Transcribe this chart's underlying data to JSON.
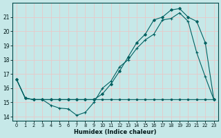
{
  "xlabel": "Humidex (Indice chaleur)",
  "bg_color": "#c6e8e8",
  "grid_color": "#e8c8c8",
  "line_color": "#006060",
  "xlim": [
    -0.5,
    23.5
  ],
  "ylim": [
    13.7,
    22.0
  ],
  "xticks": [
    0,
    1,
    2,
    3,
    4,
    5,
    6,
    7,
    8,
    9,
    10,
    11,
    12,
    13,
    14,
    15,
    16,
    17,
    18,
    19,
    20,
    21,
    22,
    23
  ],
  "yticks": [
    14,
    15,
    16,
    17,
    18,
    19,
    20,
    21
  ],
  "s1_x": [
    0,
    1,
    2,
    3,
    4,
    5,
    6,
    7,
    8,
    9,
    10,
    11,
    12,
    13,
    14,
    15,
    16,
    17,
    18,
    19,
    20,
    21,
    22,
    23
  ],
  "s1_y": [
    16.6,
    15.3,
    15.2,
    15.2,
    15.2,
    15.2,
    15.2,
    15.2,
    15.2,
    15.2,
    15.2,
    15.2,
    15.2,
    15.2,
    15.2,
    15.2,
    15.2,
    15.2,
    15.2,
    15.2,
    15.2,
    15.2,
    15.2,
    15.2
  ],
  "s2_x": [
    0,
    1,
    2,
    3,
    4,
    5,
    6,
    7,
    8,
    9,
    10,
    11,
    12,
    13,
    14,
    15,
    16,
    17,
    18,
    19,
    20,
    21,
    22,
    23
  ],
  "s2_y": [
    16.6,
    15.3,
    15.2,
    15.2,
    14.8,
    14.6,
    14.55,
    14.1,
    14.3,
    15.0,
    16.0,
    16.5,
    17.5,
    18.0,
    18.8,
    19.4,
    19.8,
    20.8,
    20.9,
    21.3,
    20.7,
    18.5,
    16.8,
    15.2
  ],
  "s3_x": [
    0,
    1,
    2,
    3,
    4,
    5,
    6,
    7,
    8,
    9,
    10,
    11,
    12,
    13,
    14,
    15,
    16,
    17,
    18,
    19,
    20,
    21,
    22,
    23
  ],
  "s3_y": [
    16.6,
    15.3,
    15.2,
    15.2,
    15.2,
    15.2,
    15.2,
    15.2,
    15.2,
    15.2,
    15.6,
    16.3,
    17.2,
    18.2,
    19.2,
    19.8,
    20.8,
    21.0,
    21.5,
    21.6,
    21.0,
    20.7,
    19.2,
    15.2
  ]
}
